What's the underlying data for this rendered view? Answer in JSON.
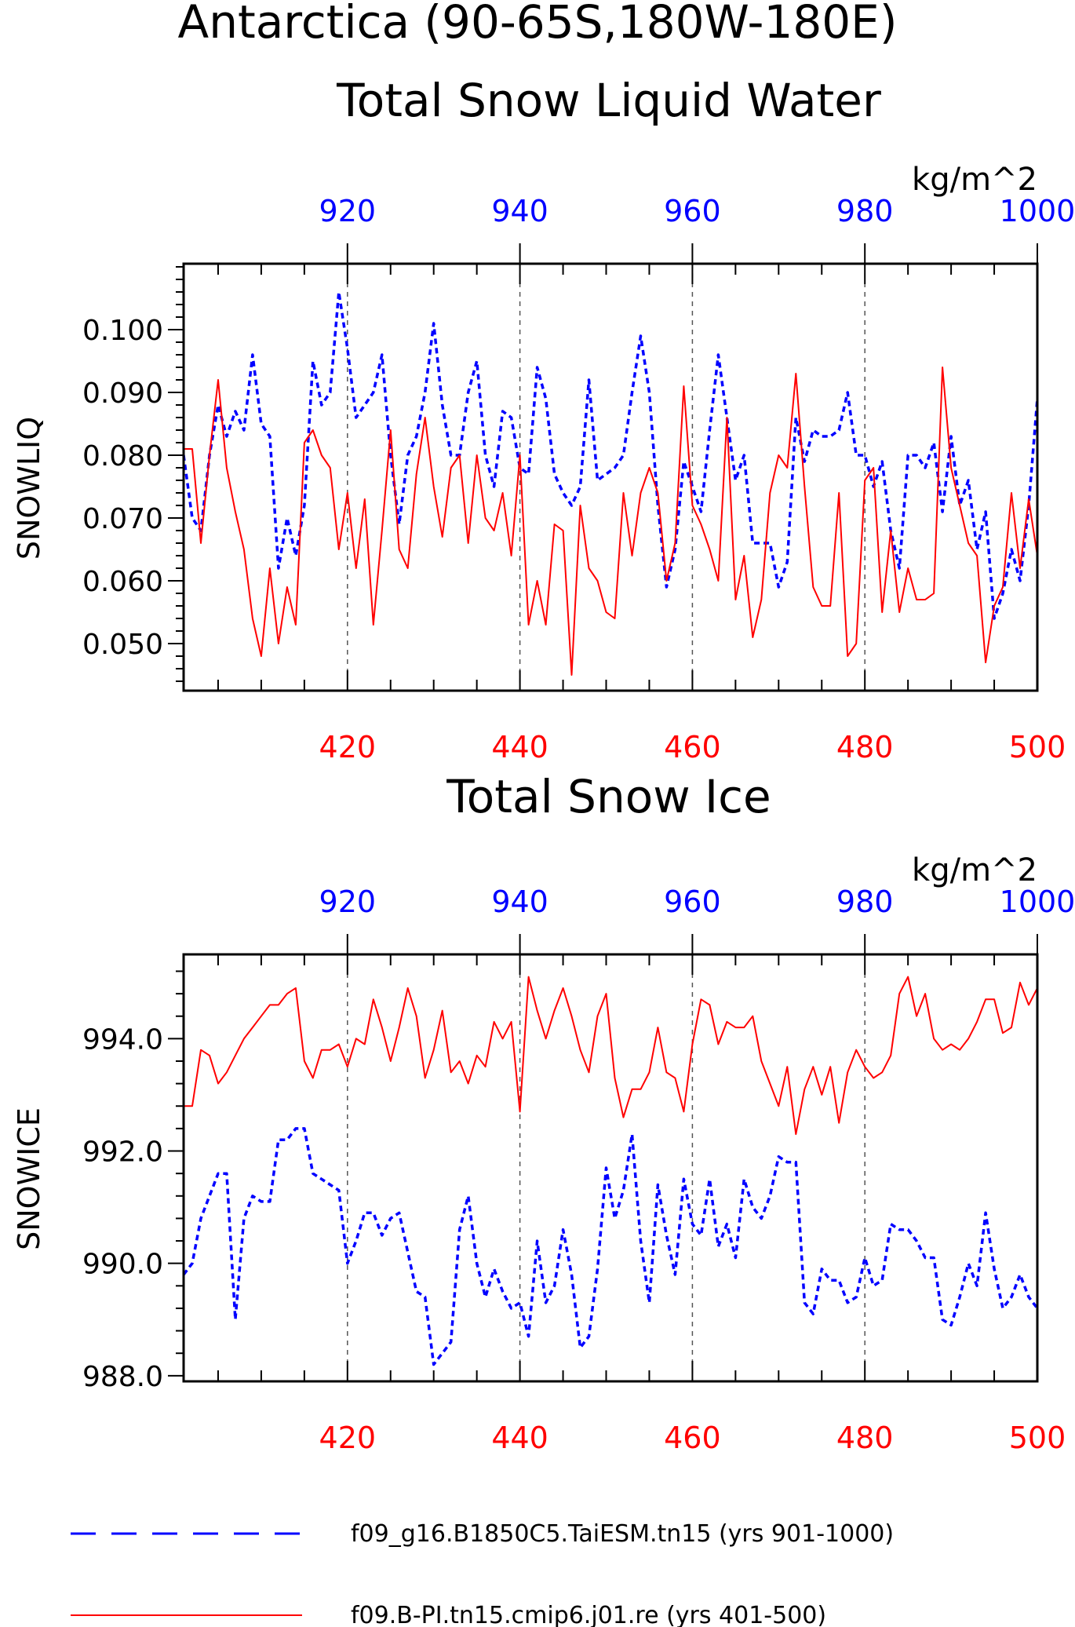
{
  "title": "Antarctica (90-65S,180W-180E)",
  "colors": {
    "model_a": "#0000ff",
    "model_b": "#ff0000",
    "axis": "#000000",
    "grid": "#555555"
  },
  "legend": {
    "entries": [
      {
        "label": "f09_g16.B1850C5.TaiESM.tn15 (yrs 901-1000)",
        "color": "#0000ff",
        "style": "dashed"
      },
      {
        "label": "f09.B-PI.tn15.cmip6.j01.re (yrs 401-500)",
        "color": "#ff0000",
        "style": "solid"
      }
    ]
  },
  "chart_data": [
    {
      "type": "line",
      "title": "Total Snow Liquid Water",
      "ylabel": "SNOWLIQ",
      "units": "kg/m^2",
      "ylim": [
        0.0425,
        0.1105
      ],
      "yticks": [
        0.05,
        0.06,
        0.07,
        0.08,
        0.09,
        0.1
      ],
      "ytick_labels": [
        "0.050",
        "0.060",
        "0.070",
        "0.080",
        "0.090",
        "0.100"
      ],
      "x_bottom": {
        "range": [
          401,
          500
        ],
        "ticks": [
          420,
          440,
          460,
          480,
          500
        ],
        "color": "#ff0000"
      },
      "x_top": {
        "range": [
          901,
          1000
        ],
        "ticks": [
          920,
          940,
          960,
          980,
          1000
        ],
        "color": "#0000ff"
      },
      "grid": "vertical dashed at major ticks",
      "series": [
        {
          "name": "f09_g16.B1850C5.TaiESM.tn15 (yrs 901-1000)",
          "axis": "top",
          "color": "#0000ff",
          "dash": true,
          "x_start": 901,
          "values": [
            0.08,
            0.07,
            0.068,
            0.08,
            0.088,
            0.083,
            0.087,
            0.084,
            0.096,
            0.085,
            0.083,
            0.062,
            0.07,
            0.064,
            0.072,
            0.095,
            0.088,
            0.09,
            0.106,
            0.097,
            0.086,
            0.088,
            0.09,
            0.096,
            0.08,
            0.069,
            0.08,
            0.083,
            0.09,
            0.101,
            0.088,
            0.08,
            0.08,
            0.09,
            0.095,
            0.08,
            0.075,
            0.087,
            0.086,
            0.078,
            0.077,
            0.094,
            0.089,
            0.077,
            0.074,
            0.072,
            0.075,
            0.092,
            0.076,
            0.077,
            0.078,
            0.08,
            0.09,
            0.099,
            0.09,
            0.072,
            0.059,
            0.065,
            0.079,
            0.075,
            0.071,
            0.084,
            0.096,
            0.086,
            0.076,
            0.08,
            0.066,
            0.066,
            0.066,
            0.059,
            0.063,
            0.086,
            0.079,
            0.084,
            0.083,
            0.083,
            0.084,
            0.09,
            0.08,
            0.08,
            0.075,
            0.079,
            0.068,
            0.062,
            0.08,
            0.08,
            0.078,
            0.082,
            0.071,
            0.083,
            0.072,
            0.076,
            0.065,
            0.071,
            0.054,
            0.058,
            0.065,
            0.06,
            0.072,
            0.089
          ]
        },
        {
          "name": "f09.B-PI.tn15.cmip6.j01.re (yrs 401-500)",
          "axis": "bottom",
          "color": "#ff0000",
          "dash": false,
          "x_start": 401,
          "values": [
            0.081,
            0.081,
            0.066,
            0.08,
            0.092,
            0.078,
            0.071,
            0.065,
            0.054,
            0.048,
            0.062,
            0.05,
            0.059,
            0.053,
            0.082,
            0.084,
            0.08,
            0.078,
            0.065,
            0.074,
            0.062,
            0.073,
            0.053,
            0.068,
            0.084,
            0.065,
            0.062,
            0.077,
            0.086,
            0.075,
            0.067,
            0.078,
            0.08,
            0.066,
            0.08,
            0.07,
            0.068,
            0.074,
            0.064,
            0.08,
            0.053,
            0.06,
            0.053,
            0.069,
            0.068,
            0.045,
            0.072,
            0.062,
            0.06,
            0.055,
            0.054,
            0.074,
            0.064,
            0.074,
            0.078,
            0.074,
            0.06,
            0.066,
            0.091,
            0.072,
            0.069,
            0.065,
            0.06,
            0.086,
            0.057,
            0.064,
            0.051,
            0.057,
            0.074,
            0.08,
            0.078,
            0.093,
            0.075,
            0.059,
            0.056,
            0.056,
            0.074,
            0.048,
            0.05,
            0.076,
            0.078,
            0.055,
            0.068,
            0.055,
            0.062,
            0.057,
            0.057,
            0.058,
            0.094,
            0.078,
            0.072,
            0.066,
            0.064,
            0.047,
            0.056,
            0.059,
            0.074,
            0.062,
            0.073,
            0.064
          ]
        }
      ]
    },
    {
      "type": "line",
      "title": "Total Snow Ice",
      "ylabel": "SNOWICE",
      "units": "kg/m^2",
      "ylim": [
        987.9,
        995.5
      ],
      "yticks": [
        988,
        990,
        992,
        994
      ],
      "ytick_labels": [
        "988.0",
        "990.0",
        "992.0",
        "994.0"
      ],
      "x_bottom": {
        "range": [
          401,
          500
        ],
        "ticks": [
          420,
          440,
          460,
          480,
          500
        ],
        "color": "#ff0000"
      },
      "x_top": {
        "range": [
          901,
          1000
        ],
        "ticks": [
          920,
          940,
          960,
          980,
          1000
        ],
        "color": "#0000ff"
      },
      "grid": "vertical dashed at major ticks",
      "series": [
        {
          "name": "f09_g16.B1850C5.TaiESM.tn15 (yrs 901-1000)",
          "axis": "top",
          "color": "#0000ff",
          "dash": true,
          "x_start": 901,
          "values": [
            989.8,
            990.0,
            990.8,
            991.2,
            991.6,
            991.6,
            989.0,
            990.8,
            991.2,
            991.1,
            991.1,
            992.2,
            992.2,
            992.4,
            992.4,
            991.6,
            991.5,
            991.4,
            991.3,
            990.0,
            990.4,
            990.9,
            990.9,
            990.5,
            990.8,
            990.9,
            990.2,
            989.5,
            989.4,
            988.2,
            988.4,
            988.6,
            990.6,
            991.2,
            990.0,
            989.4,
            989.9,
            989.5,
            989.2,
            989.3,
            988.7,
            990.4,
            989.3,
            989.6,
            990.6,
            989.8,
            988.5,
            988.7,
            989.9,
            991.7,
            990.8,
            991.3,
            992.3,
            990.4,
            989.3,
            991.4,
            990.5,
            989.8,
            991.5,
            990.7,
            990.5,
            991.5,
            990.3,
            990.7,
            990.1,
            991.5,
            991.0,
            990.8,
            991.2,
            991.9,
            991.8,
            991.8,
            989.3,
            989.1,
            989.9,
            989.7,
            989.7,
            989.3,
            989.4,
            990.1,
            989.6,
            989.7,
            990.7,
            990.6,
            990.6,
            990.4,
            990.1,
            990.1,
            989.0,
            988.9,
            989.4,
            990.0,
            989.6,
            990.9,
            989.9,
            989.2,
            989.4,
            989.8,
            989.4,
            989.2
          ]
        },
        {
          "name": "f09.B-PI.tn15.cmip6.j01.re (yrs 401-500)",
          "axis": "bottom",
          "color": "#ff0000",
          "dash": false,
          "x_start": 401,
          "values": [
            992.8,
            992.8,
            993.8,
            993.7,
            993.2,
            993.4,
            993.7,
            994.0,
            994.2,
            994.4,
            994.6,
            994.6,
            994.8,
            994.9,
            993.6,
            993.3,
            993.8,
            993.8,
            993.9,
            993.5,
            994.0,
            993.9,
            994.7,
            994.2,
            993.6,
            994.2,
            994.9,
            994.4,
            993.3,
            993.8,
            994.5,
            993.4,
            993.6,
            993.2,
            993.7,
            993.5,
            994.3,
            994.0,
            994.3,
            992.7,
            995.1,
            994.5,
            994.0,
            994.5,
            994.9,
            994.4,
            993.8,
            993.4,
            994.4,
            994.8,
            993.3,
            992.6,
            993.1,
            993.1,
            993.4,
            994.2,
            993.4,
            993.3,
            992.7,
            993.9,
            994.7,
            994.6,
            993.9,
            994.3,
            994.2,
            994.2,
            994.4,
            993.6,
            993.2,
            992.8,
            993.5,
            992.3,
            993.1,
            993.5,
            993.0,
            993.5,
            992.5,
            993.4,
            993.8,
            993.5,
            993.3,
            993.4,
            993.7,
            994.8,
            995.1,
            994.4,
            994.8,
            994.0,
            993.8,
            993.9,
            993.8,
            994.0,
            994.3,
            994.7,
            994.7,
            994.1,
            994.2,
            995.0,
            994.6,
            994.9
          ]
        }
      ]
    }
  ]
}
